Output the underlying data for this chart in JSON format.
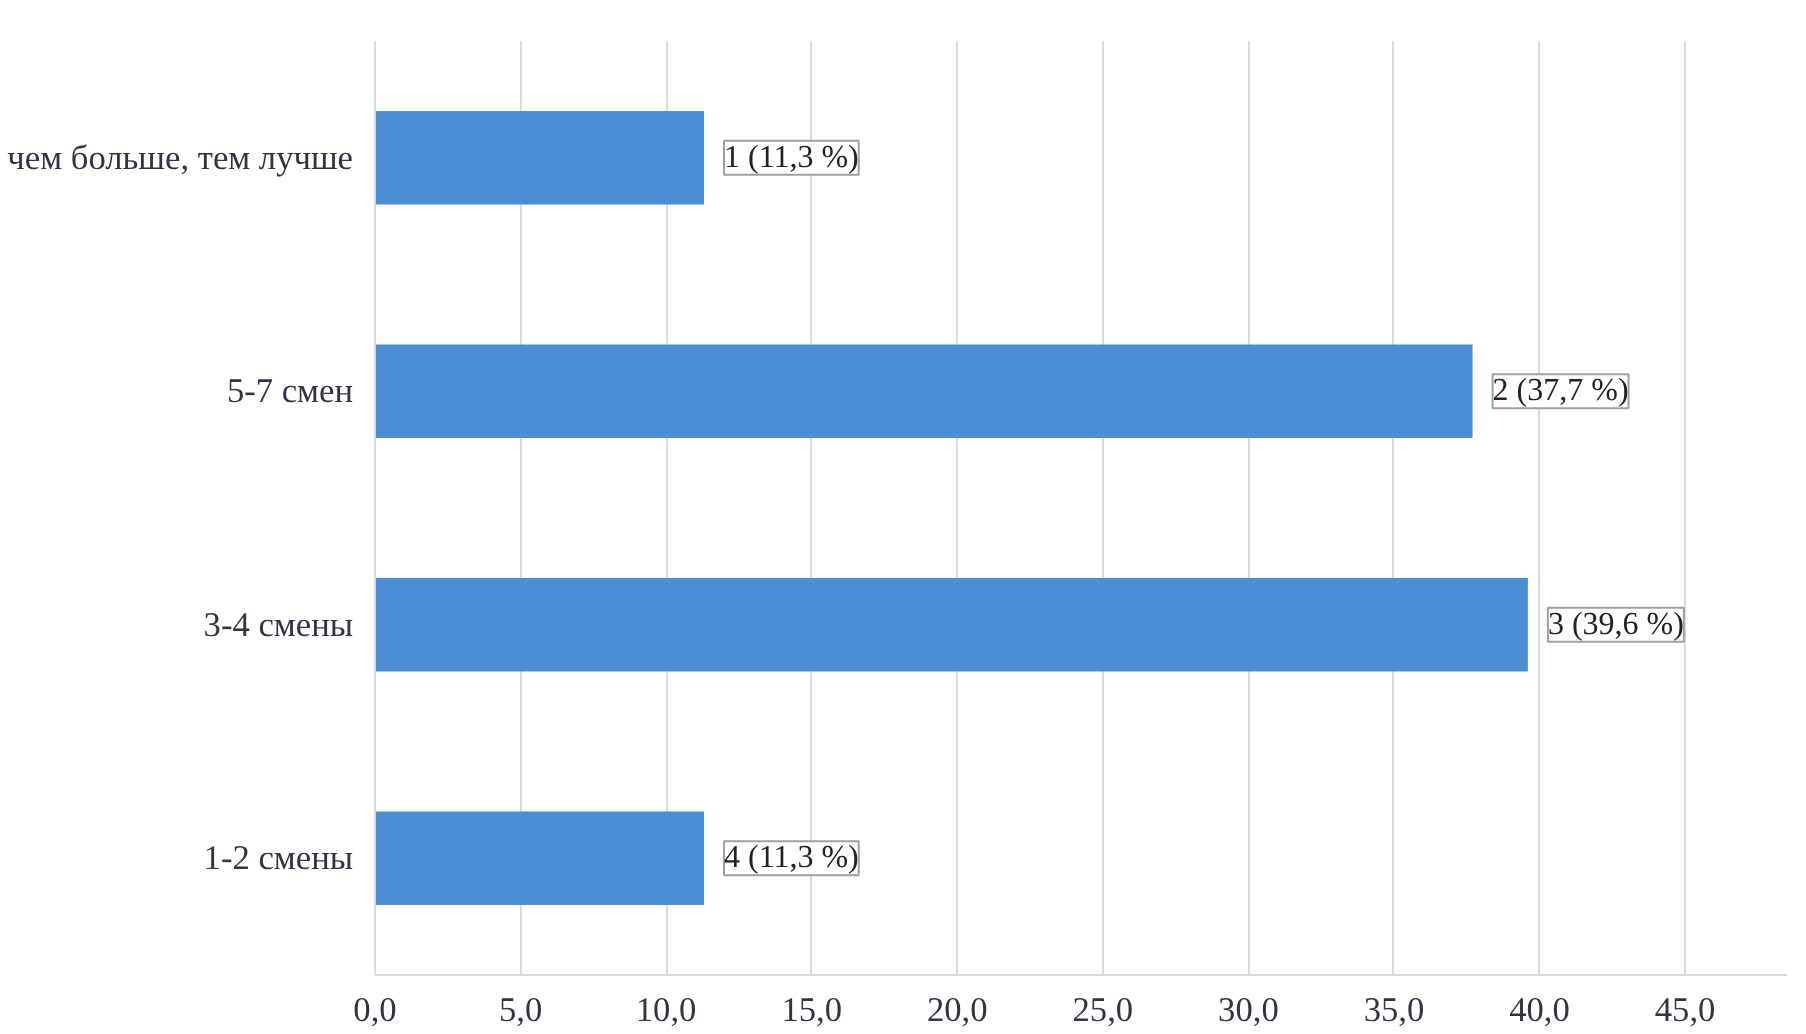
{
  "chart_data": {
    "type": "bar",
    "orientation": "horizontal",
    "categories": [
      "чем больше, тем лучше",
      "5-7 смен",
      "3-4 смены",
      "1-2 смены"
    ],
    "values": [
      11.3,
      37.7,
      39.6,
      11.3
    ],
    "color": "#4a8fd6",
    "value_labels": [
      "1 (11,3 %)",
      "2 (37,7 %)",
      "3 (39,6 %)",
      "4 (11,3 %)"
    ],
    "xlim": [
      0,
      48.5
    ],
    "xticks": [
      {
        "value": 0,
        "label": "0,0"
      },
      {
        "value": 5,
        "label": "5,0"
      },
      {
        "value": 10,
        "label": "10,0"
      },
      {
        "value": 15,
        "label": "15,0"
      },
      {
        "value": 20,
        "label": "20,0"
      },
      {
        "value": 25,
        "label": "25,0"
      },
      {
        "value": 30,
        "label": "30,0"
      },
      {
        "value": 35,
        "label": "35,0"
      },
      {
        "value": 40,
        "label": "40,0"
      },
      {
        "value": 45,
        "label": "45,0"
      }
    ],
    "grid": "x"
  }
}
